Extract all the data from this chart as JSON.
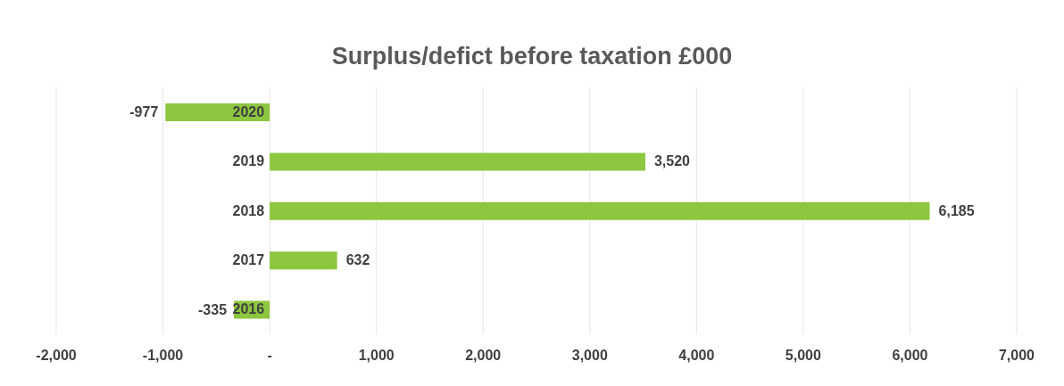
{
  "chart_data": {
    "type": "bar",
    "orientation": "horizontal",
    "title": "Surplus/defict before taxation £000",
    "categories": [
      "2020",
      "2019",
      "2018",
      "2017",
      "2016"
    ],
    "values": [
      -977,
      3520,
      6185,
      632,
      -335
    ],
    "value_labels": [
      "-977",
      "3,520",
      "6,185",
      "632",
      "-335"
    ],
    "color": "#8dc63f",
    "xlim": [
      -2000,
      7000
    ],
    "xticks": [
      {
        "value": -2000,
        "label": "-2,000"
      },
      {
        "value": -1000,
        "label": "-1,000"
      },
      {
        "value": 0,
        "label": "-"
      },
      {
        "value": 1000,
        "label": "1,000"
      },
      {
        "value": 2000,
        "label": "2,000"
      },
      {
        "value": 3000,
        "label": "3,000"
      },
      {
        "value": 4000,
        "label": "4,000"
      },
      {
        "value": 5000,
        "label": "5,000"
      },
      {
        "value": 6000,
        "label": "6,000"
      },
      {
        "value": 7000,
        "label": "7,000"
      }
    ],
    "grid": "x"
  }
}
